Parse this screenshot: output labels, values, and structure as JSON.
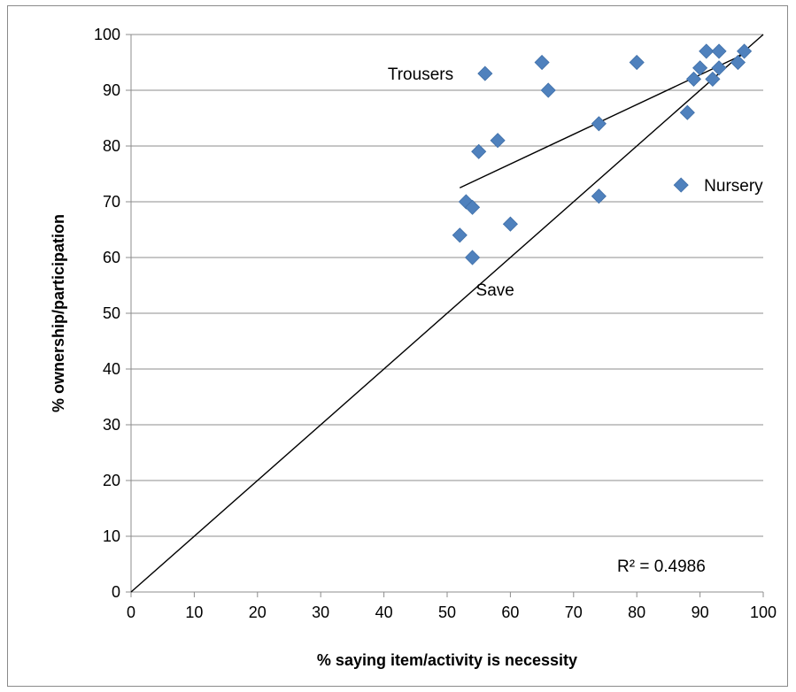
{
  "chart_data": {
    "type": "scatter",
    "xlabel": "% saying item/activity is necessity",
    "ylabel": "% ownership/participation",
    "xlim": [
      0,
      100
    ],
    "ylim": [
      0,
      100
    ],
    "xticks": [
      0,
      10,
      20,
      30,
      40,
      50,
      60,
      70,
      80,
      90,
      100
    ],
    "yticks": [
      0,
      10,
      20,
      30,
      40,
      50,
      60,
      70,
      80,
      90,
      100
    ],
    "grid": "horizontal",
    "legend": "none",
    "marker": "diamond",
    "marker_color": "#4f81bd",
    "series": [
      {
        "points": [
          {
            "x": 52,
            "y": 64
          },
          {
            "x": 53,
            "y": 70
          },
          {
            "x": 54,
            "y": 69
          },
          {
            "x": 54,
            "y": 60
          },
          {
            "x": 55,
            "y": 79
          },
          {
            "x": 56,
            "y": 93
          },
          {
            "x": 58,
            "y": 81
          },
          {
            "x": 60,
            "y": 66
          },
          {
            "x": 65,
            "y": 95
          },
          {
            "x": 66,
            "y": 90
          },
          {
            "x": 74,
            "y": 84
          },
          {
            "x": 74,
            "y": 71
          },
          {
            "x": 80,
            "y": 95
          },
          {
            "x": 87,
            "y": 73
          },
          {
            "x": 88,
            "y": 86
          },
          {
            "x": 89,
            "y": 92
          },
          {
            "x": 90,
            "y": 94
          },
          {
            "x": 91,
            "y": 97
          },
          {
            "x": 92,
            "y": 92
          },
          {
            "x": 93,
            "y": 97
          },
          {
            "x": 93,
            "y": 94
          },
          {
            "x": 96,
            "y": 95
          },
          {
            "x": 97,
            "y": 97
          }
        ]
      }
    ],
    "trendline": {
      "x1": 52,
      "y1": 72.5,
      "x2": 97,
      "y2": 96.5,
      "color": "#000000"
    },
    "reference_line": {
      "x1": 0,
      "y1": 0,
      "x2": 100,
      "y2": 100,
      "color": "#000000"
    },
    "annotations": [
      {
        "text": "Trousers",
        "x": 56,
        "y": 93
      },
      {
        "text": "Nursery",
        "x": 87,
        "y": 73
      },
      {
        "text": "Save",
        "x": 54,
        "y": 60
      }
    ],
    "r_squared_label": "R² = 0.4986"
  }
}
